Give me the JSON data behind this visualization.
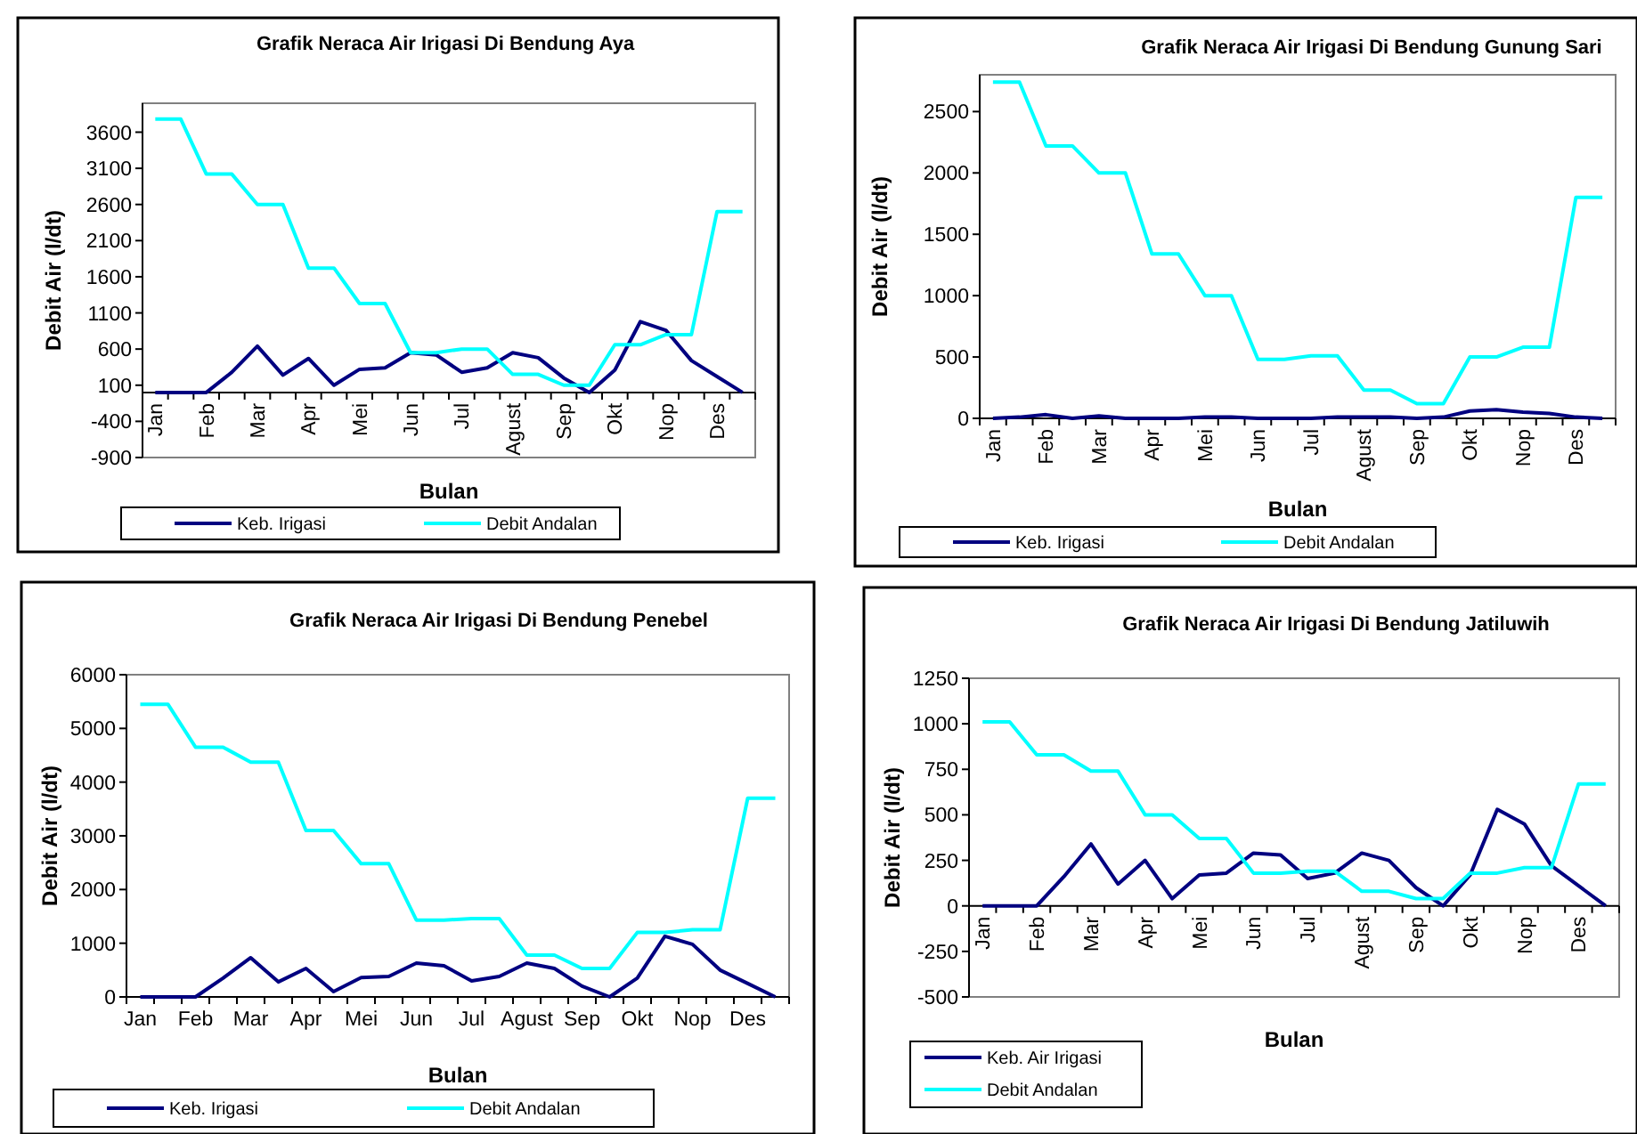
{
  "chart_data": [
    {
      "type": "line",
      "title": "Grafik Neraca Air Irigasi Di Bendung Aya",
      "xlabel": "Bulan",
      "ylabel": "Debit Air  (l/dt)",
      "categories": [
        "Jan",
        null,
        "Feb",
        null,
        "Mar",
        null,
        "Apr",
        null,
        "Mei",
        null,
        "Jun",
        null,
        "Jul",
        null,
        "Agust",
        null,
        "Sep",
        null,
        "Okt",
        null,
        "Nop",
        null,
        "Des",
        null
      ],
      "ylim": [
        -900,
        4000
      ],
      "yticks": [
        -900,
        -400,
        100,
        600,
        1100,
        1600,
        2100,
        2600,
        3100,
        3600
      ],
      "grid": false,
      "legend": "bottom",
      "marker": "none",
      "line_style": "solid",
      "series": [
        {
          "name": "Keb. Irigasi",
          "color": "#000080",
          "values": [
            0,
            0,
            0,
            280,
            640,
            240,
            470,
            100,
            320,
            340,
            550,
            520,
            280,
            340,
            550,
            480,
            200,
            0,
            310,
            980,
            860,
            440,
            220,
            0
          ]
        },
        {
          "name": "Debit Andalan",
          "color": "#00ffff",
          "values": [
            3780,
            3780,
            3020,
            3020,
            2600,
            2600,
            1720,
            1720,
            1230,
            1230,
            550,
            550,
            600,
            600,
            250,
            250,
            100,
            100,
            660,
            660,
            800,
            800,
            2500,
            2500
          ]
        }
      ]
    },
    {
      "type": "line",
      "title": "Grafik Neraca Air Irigasi Di Bendung Gunung Sari",
      "xlabel": "Bulan",
      "ylabel": "Debit Air  (l/dt)",
      "categories": [
        "Jan",
        null,
        "Feb",
        null,
        "Mar",
        null,
        "Apr",
        null,
        "Mei",
        null,
        "Jun",
        null,
        "Jul",
        null,
        "Agust",
        null,
        "Sep",
        null,
        "Okt",
        null,
        "Nop",
        null,
        "Des",
        null
      ],
      "ylim": [
        0,
        2800
      ],
      "yticks": [
        0,
        500,
        1000,
        1500,
        2000,
        2500
      ],
      "grid": false,
      "legend": "bottom",
      "marker": "none",
      "line_style": "solid",
      "series": [
        {
          "name": "Keb. Irigasi",
          "color": "#000080",
          "values": [
            0,
            10,
            30,
            0,
            20,
            0,
            0,
            0,
            10,
            10,
            0,
            0,
            0,
            10,
            10,
            10,
            0,
            10,
            60,
            70,
            50,
            40,
            10,
            0
          ]
        },
        {
          "name": "Debit Andalan",
          "color": "#00ffff",
          "values": [
            2740,
            2740,
            2220,
            2220,
            2000,
            2000,
            1340,
            1340,
            1000,
            1000,
            480,
            480,
            510,
            510,
            230,
            230,
            120,
            120,
            500,
            500,
            580,
            580,
            1800,
            1800
          ]
        }
      ]
    },
    {
      "type": "line",
      "title": "Grafik Neraca Air Irigasi Di Bendung Penebel",
      "xlabel": "Bulan",
      "ylabel": "Debit Air  (l/dt)",
      "categories": [
        "Jan",
        null,
        "Feb",
        null,
        "Mar",
        null,
        "Apr",
        null,
        "Mei",
        null,
        "Jun",
        null,
        "Jul",
        null,
        "Agust",
        null,
        "Sep",
        null,
        "Okt",
        null,
        "Nop",
        null,
        "Des",
        null
      ],
      "ylim": [
        0,
        6000
      ],
      "yticks": [
        0,
        1000,
        2000,
        3000,
        4000,
        5000,
        6000
      ],
      "grid": false,
      "legend": "bottom",
      "marker": "none",
      "line_style": "solid",
      "series": [
        {
          "name": "Keb. Irigasi",
          "color": "#000080",
          "values": [
            0,
            0,
            0,
            350,
            730,
            280,
            530,
            100,
            360,
            380,
            630,
            580,
            300,
            380,
            630,
            530,
            200,
            0,
            350,
            1130,
            980,
            500,
            250,
            0
          ]
        },
        {
          "name": "Debit Andalan",
          "color": "#00ffff",
          "values": [
            5450,
            5450,
            4650,
            4650,
            4370,
            4370,
            3100,
            3100,
            2480,
            2480,
            1430,
            1430,
            1460,
            1460,
            780,
            780,
            530,
            530,
            1200,
            1200,
            1250,
            1250,
            3700,
            3700
          ]
        }
      ]
    },
    {
      "type": "line",
      "title": "Grafik Neraca Air Irigasi Di Bendung Jatiluwih",
      "xlabel": "Bulan",
      "ylabel": "Debit Air  (l/dt)",
      "categories": [
        "Jan",
        null,
        "Feb",
        null,
        "Mar",
        null,
        "Apr",
        null,
        "Mei",
        null,
        "Jun",
        null,
        "Jul",
        null,
        "Agust",
        null,
        "Sep",
        null,
        "Okt",
        null,
        "Nop",
        null,
        "Des",
        null
      ],
      "ylim": [
        -500,
        1250
      ],
      "yticks": [
        -500,
        -250,
        0,
        250,
        500,
        750,
        1000,
        1250
      ],
      "grid": false,
      "legend": "bottom left",
      "marker": "none",
      "line_style": "solid",
      "series": [
        {
          "name": "Keb. Air Irigasi",
          "color": "#000080",
          "values": [
            0,
            0,
            0,
            160,
            340,
            120,
            250,
            40,
            170,
            180,
            290,
            280,
            150,
            180,
            290,
            250,
            100,
            0,
            170,
            530,
            450,
            220,
            110,
            0
          ]
        },
        {
          "name": "Debit Andalan",
          "color": "#00ffff",
          "values": [
            1010,
            1010,
            830,
            830,
            740,
            740,
            500,
            500,
            370,
            370,
            180,
            180,
            190,
            190,
            80,
            80,
            40,
            40,
            180,
            180,
            210,
            210,
            670,
            670
          ]
        }
      ]
    }
  ]
}
